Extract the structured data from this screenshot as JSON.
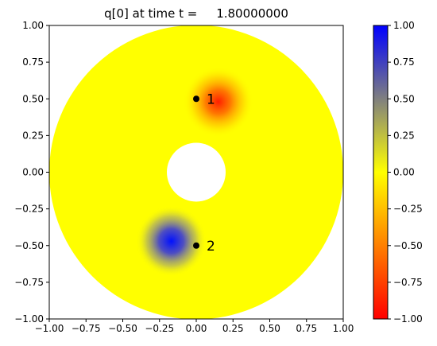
{
  "chart_data": [
    {
      "type": "heatmap",
      "title": "q[0] at time t =     1.80000000",
      "xlabel": "",
      "ylabel": "",
      "xlim": [
        -1.0,
        1.0
      ],
      "ylim": [
        -1.0,
        1.0
      ],
      "x_ticks": [
        "−1.00",
        "−0.75",
        "−0.50",
        "−0.25",
        "0.00",
        "0.25",
        "0.50",
        "0.75",
        "1.00"
      ],
      "y_ticks": [
        "−1.00",
        "−0.75",
        "−0.50",
        "−0.25",
        "0.00",
        "0.25",
        "0.50",
        "0.75",
        "1.00"
      ],
      "x_tick_values": [
        -1.0,
        -0.75,
        -0.5,
        -0.25,
        0.0,
        0.25,
        0.5,
        0.75,
        1.0
      ],
      "y_tick_values": [
        -1.0,
        -0.75,
        -0.5,
        -0.25,
        0.0,
        0.25,
        0.5,
        0.75,
        1.0
      ],
      "domain": {
        "shape": "annulus",
        "center": [
          0.0,
          0.0
        ],
        "outer_radius": 1.0,
        "inner_radius": 0.2,
        "background_value": 0.0
      },
      "blobs": [
        {
          "center": [
            0.15,
            0.48
          ],
          "peak_value": -1.0,
          "width": 0.1
        },
        {
          "center": [
            -0.17,
            -0.47
          ],
          "peak_value": 1.0,
          "width": 0.1
        }
      ],
      "markers": [
        {
          "x": 0.0,
          "y": 0.5,
          "label": "1"
        },
        {
          "x": 0.0,
          "y": -0.5,
          "label": "2"
        }
      ],
      "colorbar": {
        "min": -1.0,
        "max": 1.0,
        "colormap": [
          {
            "value": -1.0,
            "color": "#ff0000"
          },
          {
            "value": 0.0,
            "color": "#ffff00"
          },
          {
            "value": 1.0,
            "color": "#0000ff"
          }
        ],
        "tick_values": [
          -1.0,
          -0.75,
          -0.5,
          -0.25,
          0.0,
          0.25,
          0.5,
          0.75,
          1.0
        ],
        "tick_labels": [
          "−1.00",
          "−0.75",
          "−0.50",
          "−0.25",
          "0.00",
          "0.25",
          "0.50",
          "0.75",
          "1.00"
        ]
      }
    }
  ]
}
